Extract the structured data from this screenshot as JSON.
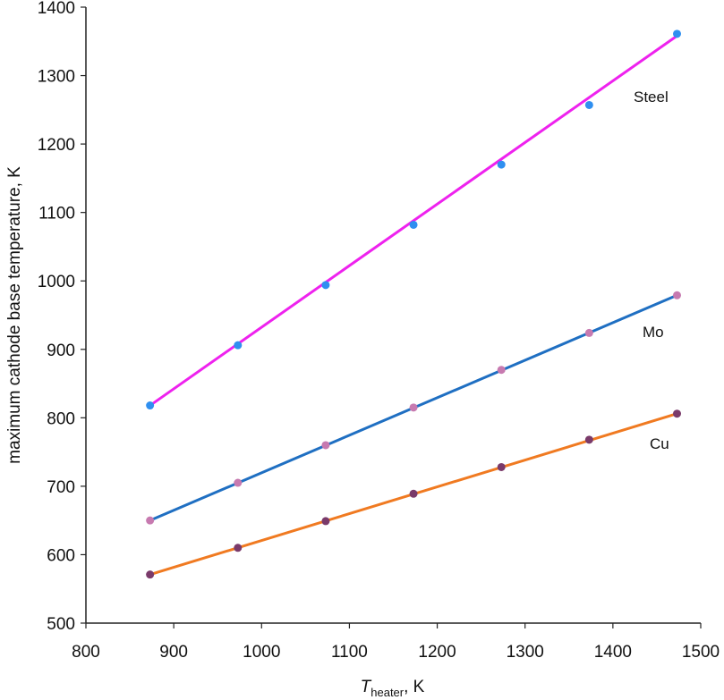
{
  "chart_data": {
    "type": "scatter",
    "xlabel_main": "T",
    "xlabel_sub": "heater",
    "xlabel_rest": ", K",
    "ylabel": "maximum cathode base temperature, K",
    "xlim": [
      800,
      1500
    ],
    "ylim": [
      500,
      1400
    ],
    "xticks": [
      "800",
      "900",
      "1000",
      "1100",
      "1200",
      "1300",
      "1400",
      "1500"
    ],
    "yticks": [
      "500",
      "600",
      "700",
      "800",
      "900",
      "1000",
      "1100",
      "1200",
      "1300",
      "1400"
    ],
    "grid": false,
    "series": [
      {
        "name": "Steel",
        "line_color": "#ee22ee",
        "marker_color": "#2f8ff0",
        "x": [
          873,
          973,
          1073,
          1173,
          1273,
          1373,
          1473
        ],
        "points": [
          818,
          906,
          994,
          1082,
          1170,
          1257,
          1361
        ],
        "fit": [
          [
            873,
            818
          ],
          [
            1473,
            1358
          ]
        ]
      },
      {
        "name": "Mo",
        "line_color": "#1f6fc2",
        "marker_color": "#c77ab0",
        "x": [
          873,
          973,
          1073,
          1173,
          1273,
          1373,
          1473
        ],
        "points": [
          650,
          705,
          760,
          815,
          870,
          924,
          979
        ],
        "fit": [
          [
            873,
            650
          ],
          [
            1473,
            979
          ]
        ]
      },
      {
        "name": "Cu",
        "line_color": "#f07a21",
        "marker_color": "#7a3a6a",
        "x": [
          873,
          973,
          1073,
          1173,
          1273,
          1373,
          1473
        ],
        "points": [
          571,
          610,
          649,
          689,
          728,
          768,
          806
        ],
        "fit": [
          [
            873,
            571
          ],
          [
            1473,
            806
          ]
        ]
      }
    ]
  }
}
